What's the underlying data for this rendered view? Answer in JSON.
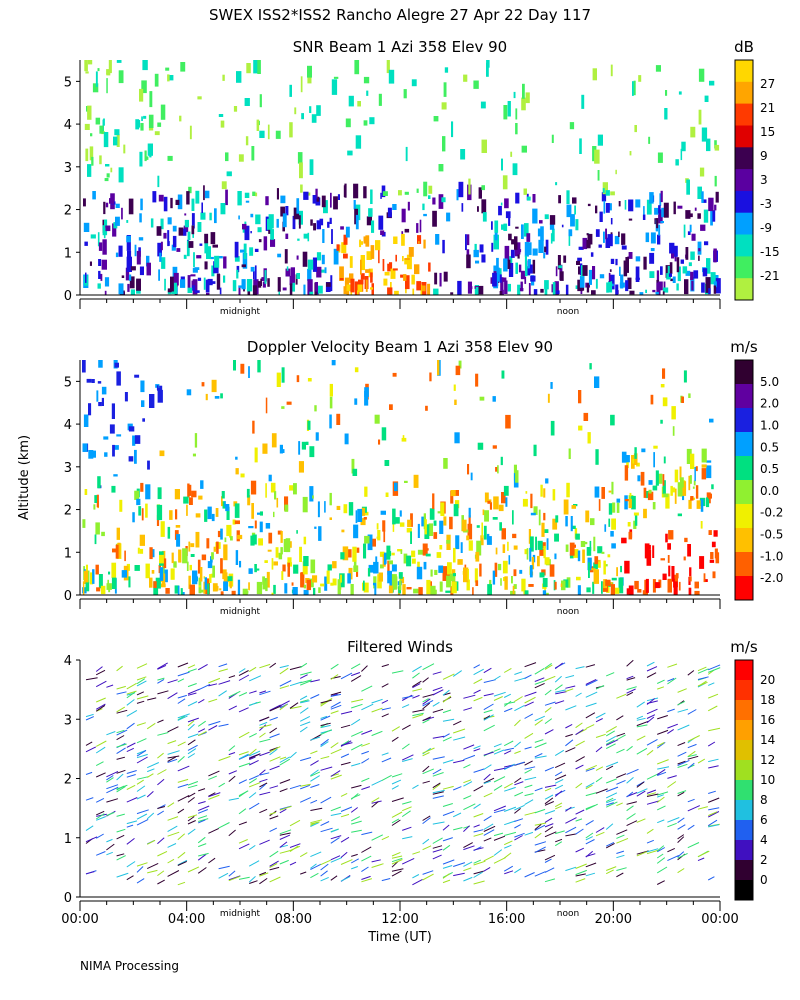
{
  "header": {
    "title": "SWEX ISS2*ISS2 Rancho Alegre  27 Apr 22 Day 117"
  },
  "footer": {
    "processing": "NIMA Processing"
  },
  "chart_data": [
    {
      "type": "heatmap",
      "title": "SNR Beam 1 Azi 358 Elev 90",
      "ylabel": "",
      "ylim": [
        0,
        5.5
      ],
      "yticks": [
        "0",
        "1",
        "2",
        "3",
        "4",
        "5"
      ],
      "xmarkers": [
        "midnight",
        "noon"
      ],
      "colorbar": {
        "unit": "dB",
        "labels": [
          "27",
          "21",
          "15",
          "9",
          "3",
          "-3",
          "-9",
          "-15",
          "-21"
        ],
        "colors": [
          "#ffd700",
          "#ffa500",
          "#ff3a00",
          "#e00000",
          "#3c0050",
          "#5a00a0",
          "#1a10e0",
          "#00a0ff",
          "#00e0c0",
          "#40ee60",
          "#b0f040"
        ]
      }
    },
    {
      "type": "heatmap",
      "title": "Doppler Velocity Beam 1 Azi 358 Elev 90",
      "ylabel": "Altitude (km)",
      "ylim": [
        0,
        5.5
      ],
      "yticks": [
        "0",
        "1",
        "2",
        "3",
        "4",
        "5"
      ],
      "xmarkers": [
        "midnight",
        "noon"
      ],
      "colorbar": {
        "unit": "m/s",
        "labels": [
          "5.0",
          "2.0",
          "1.0",
          "0.5",
          "0.5",
          "0.0",
          "-0.2",
          "-0.5",
          "-1.0",
          "-2.0"
        ],
        "colors": [
          "#300030",
          "#6000a0",
          "#1a20e0",
          "#00a0ff",
          "#00e080",
          "#90f030",
          "#f0f000",
          "#ffc000",
          "#ff6000",
          "#ff0000"
        ]
      }
    },
    {
      "type": "barbs",
      "title": "Filtered Winds",
      "ylabel": "",
      "ylim": [
        0,
        4
      ],
      "yticks": [
        "0",
        "1",
        "2",
        "3",
        "4"
      ],
      "xmarkers": [
        "midnight",
        "noon"
      ],
      "xlabel": "Time (UT)",
      "xticks": [
        "00:00",
        "04:00",
        "08:00",
        "12:00",
        "16:00",
        "20:00",
        "00:00"
      ],
      "colorbar": {
        "unit": "m/s",
        "labels": [
          "20",
          "18",
          "16",
          "14",
          "12",
          "10",
          "8",
          "6",
          "4",
          "2",
          "0"
        ],
        "colors": [
          "#ff0000",
          "#ff3000",
          "#ff7000",
          "#ffa000",
          "#e0c000",
          "#a0e020",
          "#30e070",
          "#20c0e0",
          "#2060f0",
          "#4010c0",
          "#300030",
          "#000000"
        ]
      }
    }
  ]
}
